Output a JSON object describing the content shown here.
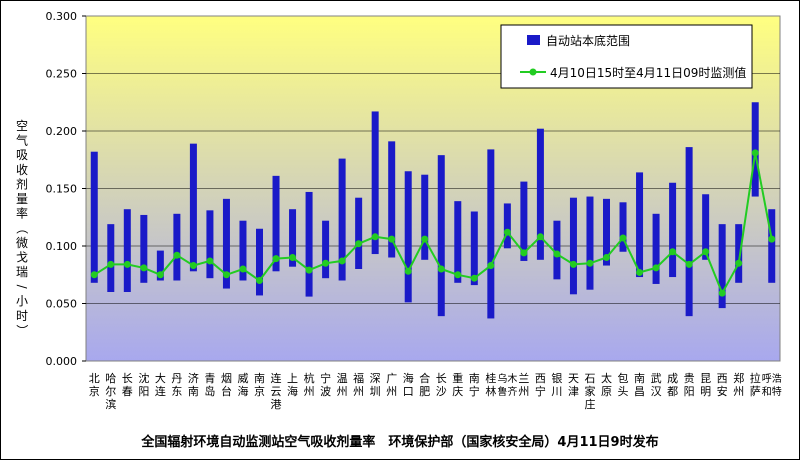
{
  "chart_data": {
    "type": "bar",
    "caption": "全国辐射环境自动监测站空气吸收剂量率　环境保护部（国家核安全局）4月11日9时发布",
    "ylabel": "空气吸收剂量率（微戈瑞/小时）",
    "ylim": [
      0,
      0.3
    ],
    "yticks": [
      "0.000",
      "0.050",
      "0.100",
      "0.150",
      "0.200",
      "0.250",
      "0.300"
    ],
    "grid": true,
    "legend_position": "top-right",
    "categories": [
      "北京",
      "哈尔滨",
      "长春",
      "沈阳",
      "大连",
      "丹东",
      "济南",
      "青岛",
      "烟台",
      "威海",
      "南京",
      "连云港",
      "上海",
      "杭州",
      "宁波",
      "温州",
      "福州",
      "深圳",
      "广州",
      "海口",
      "合肥",
      "长沙",
      "重庆",
      "南宁",
      "桂林",
      "乌鲁木齐",
      "兰州",
      "西宁",
      "银川",
      "天津",
      "石家庄",
      "太原",
      "包头",
      "南昌",
      "武汉",
      "成都",
      "贵阳",
      "昆明",
      "西安",
      "郑州",
      "拉萨",
      "呼和浩特"
    ],
    "series": [
      {
        "name": "自动站本底范围",
        "type": "range-bar",
        "color": "#1A1AC8",
        "low": [
          0.068,
          0.06,
          0.06,
          0.068,
          0.07,
          0.07,
          0.078,
          0.072,
          0.063,
          0.07,
          0.057,
          0.078,
          0.082,
          0.056,
          0.072,
          0.07,
          0.08,
          0.093,
          0.09,
          0.051,
          0.088,
          0.039,
          0.068,
          0.066,
          0.037,
          0.098,
          0.087,
          0.088,
          0.071,
          0.058,
          0.062,
          0.083,
          0.095,
          0.073,
          0.067,
          0.073,
          0.039,
          0.088,
          0.046,
          0.068,
          0.143,
          0.068
        ],
        "high": [
          0.182,
          0.119,
          0.132,
          0.127,
          0.096,
          0.128,
          0.189,
          0.131,
          0.141,
          0.122,
          0.115,
          0.161,
          0.132,
          0.147,
          0.122,
          0.176,
          0.142,
          0.217,
          0.191,
          0.165,
          0.162,
          0.179,
          0.139,
          0.13,
          0.184,
          0.137,
          0.156,
          0.202,
          0.122,
          0.142,
          0.143,
          0.141,
          0.138,
          0.164,
          0.128,
          0.155,
          0.186,
          0.145,
          0.119,
          0.119,
          0.225,
          0.132
        ]
      },
      {
        "name": "4月10日15时至4月11日09时监测值",
        "type": "line",
        "color": "#22CC22",
        "values": [
          0.075,
          0.084,
          0.084,
          0.081,
          0.075,
          0.092,
          0.083,
          0.087,
          0.075,
          0.08,
          0.07,
          0.089,
          0.09,
          0.079,
          0.085,
          0.087,
          0.102,
          0.108,
          0.106,
          0.078,
          0.106,
          0.08,
          0.075,
          0.072,
          0.083,
          0.112,
          0.094,
          0.108,
          0.093,
          0.084,
          0.085,
          0.09,
          0.107,
          0.077,
          0.081,
          0.095,
          0.084,
          0.095,
          0.059,
          0.085,
          0.181,
          0.106
        ]
      }
    ],
    "colors": {
      "background_top": "#FFFF80",
      "background_bottom": "#A8A8EE",
      "frame": "#808080"
    }
  }
}
